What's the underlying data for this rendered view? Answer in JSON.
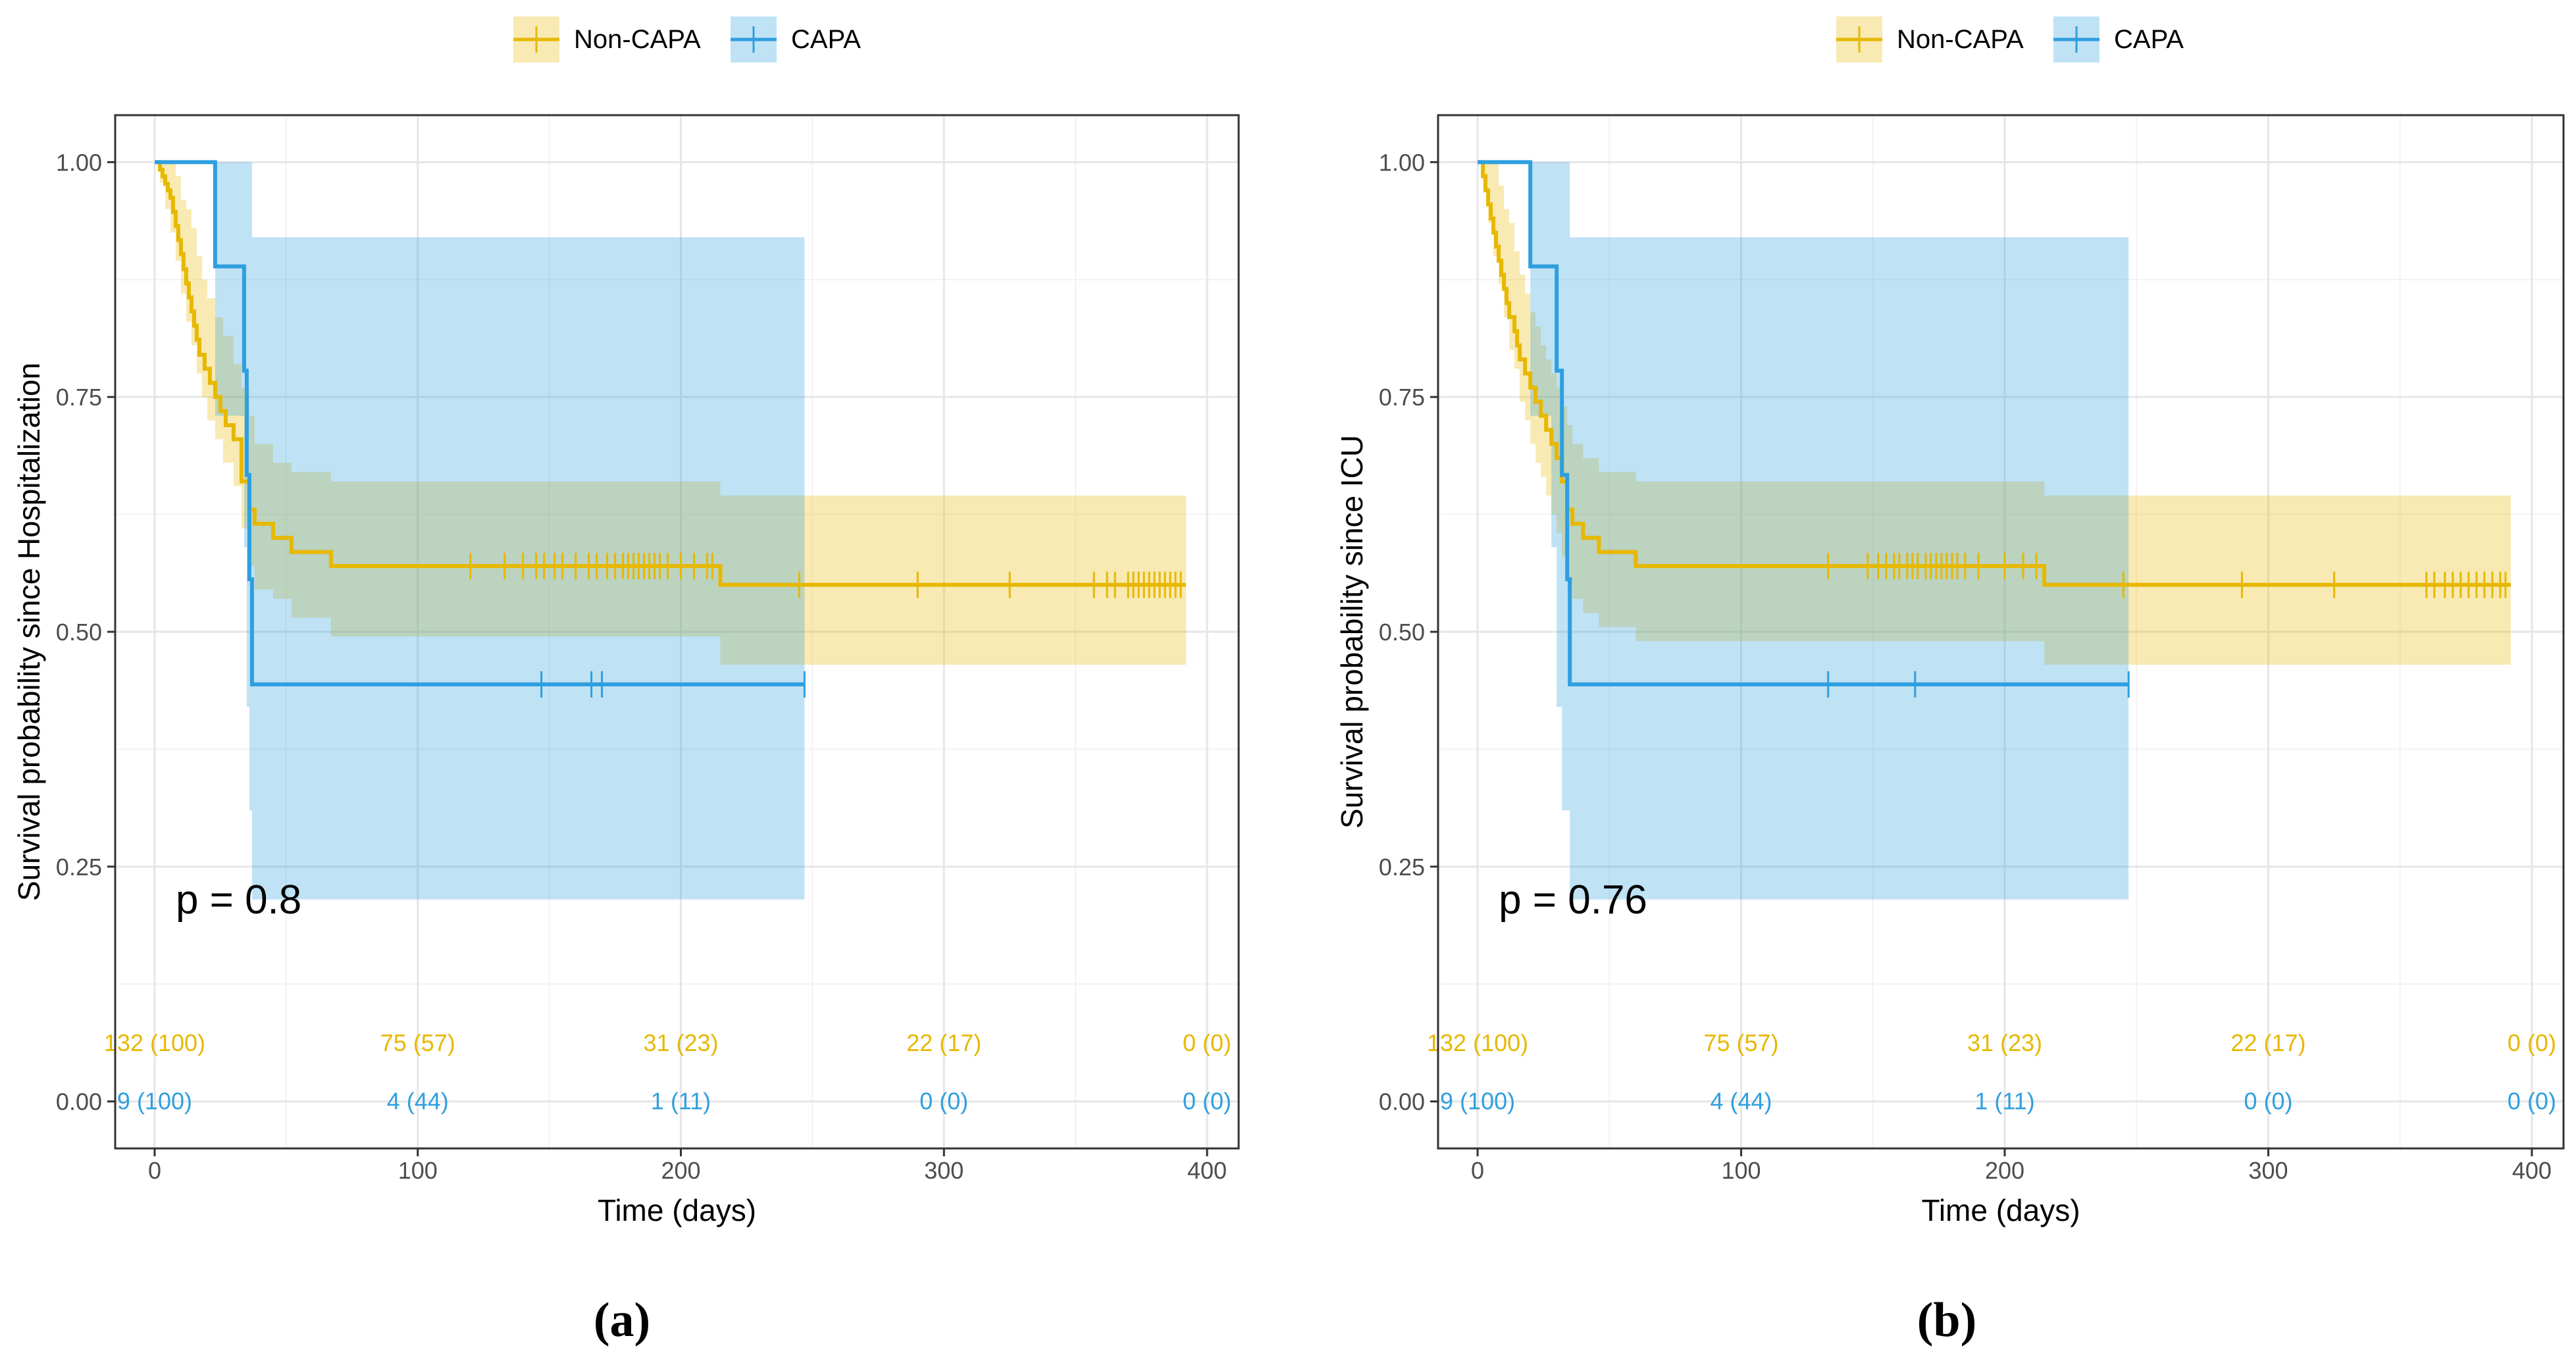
{
  "chart_data": [
    {
      "type": "line",
      "subtype": "kaplan-meier",
      "caption": "(a)",
      "xlabel": "Time (days)",
      "ylabel": "Survival probability since Hospitalization",
      "xlim": [
        -15,
        412
      ],
      "ylim": [
        -0.05,
        1.05
      ],
      "xticks": [
        0,
        100,
        200,
        300,
        400
      ],
      "xtick_labels": [
        "0",
        "100",
        "200",
        "300",
        "400"
      ],
      "yticks": [
        0,
        0.25,
        0.5,
        0.75,
        1
      ],
      "ytick_labels": [
        "0.00",
        "0.25",
        "0.50",
        "0.75",
        "1.00"
      ],
      "pvalue": "p = 0.8",
      "pvalue_at": [
        8,
        0.2
      ],
      "legend": [
        "Non-CAPA",
        "CAPA"
      ],
      "series": [
        {
          "name": "Non-CAPA",
          "color": "#E7B800",
          "steps": [
            [
              0,
              1
            ],
            [
              2,
              0.992
            ],
            [
              3,
              0.985
            ],
            [
              4,
              0.977
            ],
            [
              5,
              0.97
            ],
            [
              6,
              0.962
            ],
            [
              7,
              0.947
            ],
            [
              8,
              0.932
            ],
            [
              9,
              0.917
            ],
            [
              10,
              0.902
            ],
            [
              11,
              0.886
            ],
            [
              12,
              0.871
            ],
            [
              13,
              0.856
            ],
            [
              14,
              0.841
            ],
            [
              15,
              0.826
            ],
            [
              16,
              0.811
            ],
            [
              17,
              0.795
            ],
            [
              19,
              0.78
            ],
            [
              21,
              0.765
            ],
            [
              23,
              0.75
            ],
            [
              25,
              0.735
            ],
            [
              27,
              0.72
            ],
            [
              30,
              0.705
            ],
            [
              33,
              0.66
            ],
            [
              36,
              0.63
            ],
            [
              38,
              0.615
            ],
            [
              45,
              0.6
            ],
            [
              52,
              0.585
            ],
            [
              67,
              0.57
            ],
            [
              215,
              0.55
            ],
            [
              392,
              0.55
            ]
          ],
          "lower": [
            [
              0,
              1
            ],
            [
              2,
              0.978
            ],
            [
              4,
              0.95
            ],
            [
              6,
              0.925
            ],
            [
              8,
              0.895
            ],
            [
              10,
              0.86
            ],
            [
              12,
              0.83
            ],
            [
              14,
              0.805
            ],
            [
              16,
              0.775
            ],
            [
              18,
              0.75
            ],
            [
              20,
              0.725
            ],
            [
              23,
              0.705
            ],
            [
              26,
              0.68
            ],
            [
              30,
              0.655
            ],
            [
              33,
              0.61
            ],
            [
              36,
              0.57
            ],
            [
              38,
              0.545
            ],
            [
              45,
              0.535
            ],
            [
              52,
              0.515
            ],
            [
              67,
              0.495
            ],
            [
              215,
              0.465
            ],
            [
              392,
              0.465
            ]
          ],
          "upper": [
            [
              0,
              1
            ],
            [
              5,
              1
            ],
            [
              8,
              0.985
            ],
            [
              10,
              0.96
            ],
            [
              12,
              0.95
            ],
            [
              14,
              0.93
            ],
            [
              16,
              0.9
            ],
            [
              18,
              0.875
            ],
            [
              20,
              0.855
            ],
            [
              23,
              0.835
            ],
            [
              26,
              0.815
            ],
            [
              30,
              0.785
            ],
            [
              33,
              0.76
            ],
            [
              36,
              0.73
            ],
            [
              38,
              0.7
            ],
            [
              45,
              0.68
            ],
            [
              52,
              0.67
            ],
            [
              67,
              0.66
            ],
            [
              215,
              0.645
            ],
            [
              392,
              0.645
            ]
          ],
          "censors": [
            120,
            133,
            140,
            145,
            148,
            152,
            155,
            160,
            165,
            168,
            172,
            175,
            178,
            180,
            182,
            184,
            186,
            188,
            190,
            192,
            195,
            200,
            205,
            210,
            212,
            245,
            290,
            325,
            357,
            362,
            365,
            370,
            372,
            374,
            376,
            378,
            380,
            382,
            384,
            386,
            388,
            390
          ]
        },
        {
          "name": "CAPA",
          "color": "#2E9FDF",
          "steps": [
            [
              0,
              1
            ],
            [
              23,
              0.889
            ],
            [
              34,
              0.778
            ],
            [
              35,
              0.667
            ],
            [
              36,
              0.556
            ],
            [
              37,
              0.444
            ],
            [
              247,
              0.444
            ]
          ],
          "lower": [
            [
              0,
              1
            ],
            [
              23,
              0.73
            ],
            [
              34,
              0.59
            ],
            [
              35,
              0.42
            ],
            [
              36,
              0.31
            ],
            [
              37,
              0.215
            ],
            [
              247,
              0.215
            ]
          ],
          "upper": [
            [
              0,
              1
            ],
            [
              37,
              0.92
            ],
            [
              247,
              0.92
            ]
          ],
          "censors": [
            147,
            166,
            170,
            247
          ]
        }
      ],
      "risk_table": {
        "times": [
          0,
          100,
          200,
          300,
          400
        ],
        "rows": [
          {
            "name": "Non-CAPA",
            "values": [
              "132 (100)",
              "75 (57)",
              "31 (23)",
              "22 (17)",
              "0 (0)"
            ]
          },
          {
            "name": "CAPA",
            "values": [
              "9 (100)",
              "4 (44)",
              "1 (11)",
              "0 (0)",
              "0 (0)"
            ]
          }
        ]
      }
    },
    {
      "type": "line",
      "subtype": "kaplan-meier",
      "caption": "(b)",
      "xlabel": "Time (days)",
      "ylabel": "Survival probability since ICU",
      "xlim": [
        -15,
        412
      ],
      "ylim": [
        -0.05,
        1.05
      ],
      "xticks": [
        0,
        100,
        200,
        300,
        400
      ],
      "xtick_labels": [
        "0",
        "100",
        "200",
        "300",
        "400"
      ],
      "yticks": [
        0,
        0.25,
        0.5,
        0.75,
        1
      ],
      "ytick_labels": [
        "0.00",
        "0.25",
        "0.50",
        "0.75",
        "1.00"
      ],
      "pvalue": "p = 0.76",
      "pvalue_at": [
        8,
        0.2
      ],
      "legend": [
        "Non-CAPA",
        "CAPA"
      ],
      "series": [
        {
          "name": "Non-CAPA",
          "color": "#E7B800",
          "steps": [
            [
              0,
              1
            ],
            [
              2,
              0.985
            ],
            [
              3,
              0.97
            ],
            [
              4,
              0.955
            ],
            [
              5,
              0.94
            ],
            [
              6,
              0.925
            ],
            [
              7,
              0.91
            ],
            [
              8,
              0.895
            ],
            [
              9,
              0.88
            ],
            [
              10,
              0.865
            ],
            [
              11,
              0.85
            ],
            [
              12,
              0.835
            ],
            [
              14,
              0.82
            ],
            [
              15,
              0.805
            ],
            [
              16,
              0.79
            ],
            [
              18,
              0.775
            ],
            [
              20,
              0.76
            ],
            [
              22,
              0.745
            ],
            [
              24,
              0.73
            ],
            [
              26,
              0.715
            ],
            [
              28,
              0.7
            ],
            [
              30,
              0.685
            ],
            [
              32,
              0.66
            ],
            [
              34,
              0.63
            ],
            [
              36,
              0.615
            ],
            [
              40,
              0.6
            ],
            [
              46,
              0.585
            ],
            [
              60,
              0.57
            ],
            [
              215,
              0.55
            ],
            [
              392,
              0.55
            ]
          ],
          "lower": [
            [
              0,
              1
            ],
            [
              2,
              0.97
            ],
            [
              4,
              0.935
            ],
            [
              6,
              0.9
            ],
            [
              8,
              0.87
            ],
            [
              10,
              0.835
            ],
            [
              12,
              0.8
            ],
            [
              14,
              0.78
            ],
            [
              16,
              0.745
            ],
            [
              18,
              0.725
            ],
            [
              20,
              0.7
            ],
            [
              22,
              0.68
            ],
            [
              24,
              0.665
            ],
            [
              26,
              0.645
            ],
            [
              28,
              0.625
            ],
            [
              30,
              0.605
            ],
            [
              32,
              0.58
            ],
            [
              34,
              0.55
            ],
            [
              36,
              0.535
            ],
            [
              40,
              0.52
            ],
            [
              46,
              0.505
            ],
            [
              60,
              0.49
            ],
            [
              215,
              0.465
            ],
            [
              392,
              0.465
            ]
          ],
          "upper": [
            [
              0,
              1
            ],
            [
              5,
              1
            ],
            [
              8,
              0.975
            ],
            [
              10,
              0.95
            ],
            [
              12,
              0.935
            ],
            [
              14,
              0.905
            ],
            [
              16,
              0.88
            ],
            [
              18,
              0.86
            ],
            [
              20,
              0.84
            ],
            [
              22,
              0.825
            ],
            [
              24,
              0.805
            ],
            [
              26,
              0.79
            ],
            [
              28,
              0.775
            ],
            [
              30,
              0.76
            ],
            [
              32,
              0.74
            ],
            [
              34,
              0.72
            ],
            [
              36,
              0.7
            ],
            [
              40,
              0.685
            ],
            [
              46,
              0.67
            ],
            [
              60,
              0.66
            ],
            [
              215,
              0.645
            ],
            [
              392,
              0.645
            ]
          ],
          "censors": [
            133,
            148,
            152,
            155,
            158,
            160,
            163,
            165,
            167,
            170,
            172,
            174,
            176,
            178,
            180,
            182,
            185,
            190,
            200,
            207,
            212,
            245,
            290,
            325,
            360,
            363,
            367,
            370,
            373,
            376,
            379,
            382,
            385,
            388,
            390
          ]
        },
        {
          "name": "CAPA",
          "color": "#2E9FDF",
          "steps": [
            [
              0,
              1
            ],
            [
              20,
              0.889
            ],
            [
              30,
              0.778
            ],
            [
              32,
              0.667
            ],
            [
              34,
              0.556
            ],
            [
              35,
              0.444
            ],
            [
              247,
              0.444
            ]
          ],
          "lower": [
            [
              0,
              1
            ],
            [
              20,
              0.73
            ],
            [
              28,
              0.59
            ],
            [
              30,
              0.42
            ],
            [
              32,
              0.31
            ],
            [
              35,
              0.215
            ],
            [
              247,
              0.215
            ]
          ],
          "upper": [
            [
              0,
              1
            ],
            [
              35,
              0.92
            ],
            [
              247,
              0.92
            ]
          ],
          "censors": [
            133,
            166,
            247
          ]
        }
      ],
      "risk_table": {
        "times": [
          0,
          100,
          200,
          300,
          400
        ],
        "rows": [
          {
            "name": "Non-CAPA",
            "values": [
              "132 (100)",
              "75 (57)",
              "31 (23)",
              "22 (17)",
              "0 (0)"
            ]
          },
          {
            "name": "CAPA",
            "values": [
              "9 (100)",
              "4 (44)",
              "1 (11)",
              "0 (0)",
              "0 (0)"
            ]
          }
        ]
      }
    }
  ]
}
